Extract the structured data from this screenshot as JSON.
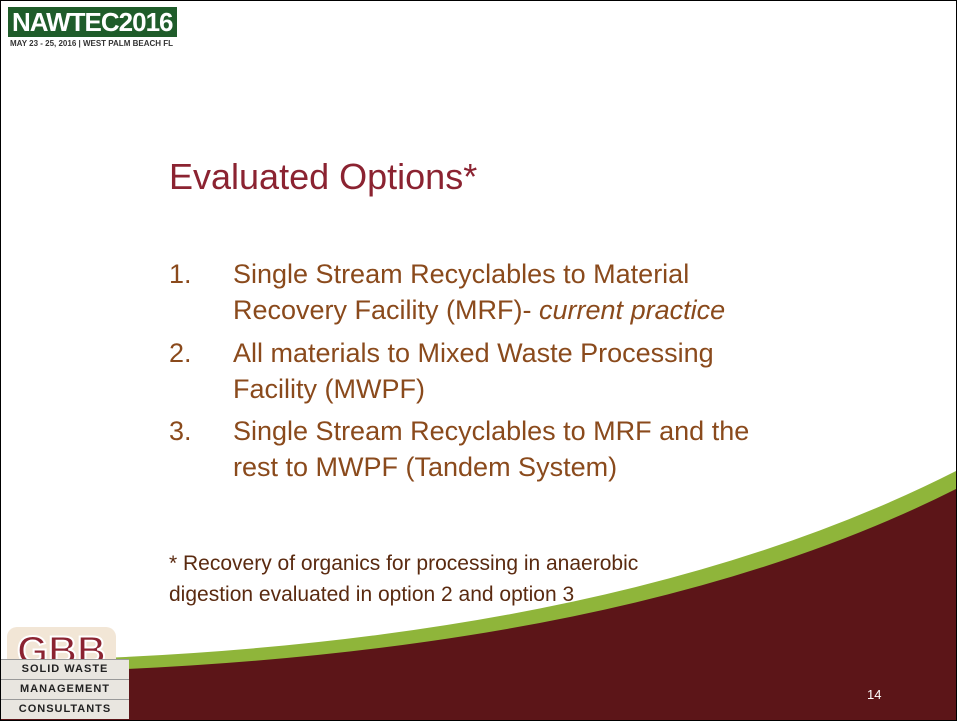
{
  "header": {
    "logo": "NAWTEC2016",
    "tagline": "MAY 23 - 25, 2016 | WEST PALM BEACH FL"
  },
  "title": "Evaluated Options*",
  "items": [
    {
      "number": "1.",
      "lines": [
        "Single Stream Recyclables to Material",
        "Recovery Facility (MRF)-"
      ],
      "emphasis": "current practice"
    },
    {
      "number": "2.",
      "lines": [
        "All materials to Mixed Waste Processing",
        "Facility (MWPF)"
      ]
    },
    {
      "number": "3.",
      "lines": [
        "Single Stream Recyclables to MRF and the",
        "rest to MWPF (Tandem System)"
      ]
    }
  ],
  "footnote": [
    "* Recovery of organics for processing in anaerobic",
    "digestion evaluated in option 2 and option 3"
  ],
  "footer_logo": {
    "mark": "GBB",
    "lines": [
      "SOLID WASTE",
      "MANAGEMENT",
      "CONSULTANTS"
    ]
  },
  "page_number": "14"
}
